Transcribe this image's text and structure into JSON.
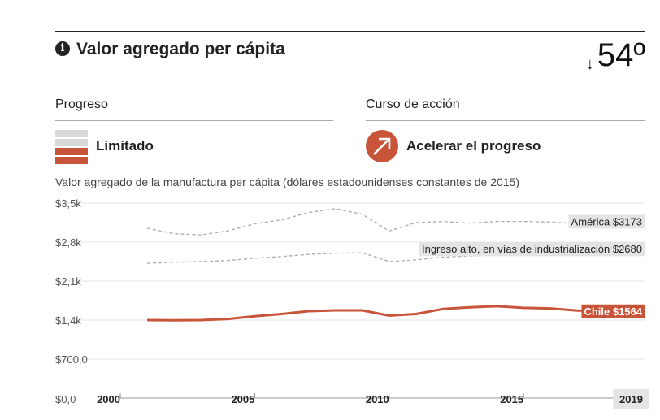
{
  "header": {
    "title": "Valor agregado per cápita",
    "info_icon": "i",
    "rank_arrow": "↓",
    "rank": "54º"
  },
  "progress": {
    "heading": "Progreso",
    "status": "Limitado",
    "icon": "progress-bars-icon",
    "colors": {
      "inactive": "#d9d9d9",
      "active": "#c8553a"
    }
  },
  "action": {
    "heading": "Curso de acción",
    "label": "Acelerar el progreso",
    "icon": "arrow-up-right-icon",
    "color": "#c8553a"
  },
  "chart_caption": "Valor agregado de la manufactura per cápita (dólares estadounidenses constantes de 2015)",
  "chart_data": {
    "type": "line",
    "x": [
      2001,
      2002,
      2003,
      2004,
      2005,
      2006,
      2007,
      2008,
      2009,
      2010,
      2011,
      2012,
      2013,
      2014,
      2015,
      2016,
      2017,
      2018,
      2019
    ],
    "series": [
      {
        "name": "América",
        "label": "América $3173",
        "style": "dashed",
        "color": "#aaaaaa",
        "values": [
          3050,
          2950,
          2930,
          3000,
          3130,
          3200,
          3330,
          3400,
          3300,
          3000,
          3150,
          3170,
          3140,
          3170,
          3170,
          3160,
          3130,
          3080,
          3173
        ]
      },
      {
        "name": "Ingreso alto, en vías de industrialización",
        "label": "Ingreso alto, en vías de industrialización $2680",
        "style": "dashed",
        "color": "#aaaaaa",
        "values": [
          2420,
          2440,
          2450,
          2470,
          2510,
          2540,
          2580,
          2600,
          2610,
          2450,
          2480,
          2530,
          2550,
          2570,
          2590,
          2620,
          2640,
          2660,
          2680
        ]
      },
      {
        "name": "Chile",
        "label": "Chile $1564",
        "style": "solid",
        "color": "#c8553a",
        "values": [
          1400,
          1395,
          1400,
          1420,
          1470,
          1510,
          1560,
          1575,
          1575,
          1480,
          1510,
          1600,
          1630,
          1650,
          1620,
          1610,
          1570,
          1560,
          1564
        ]
      }
    ],
    "y_ticks": [
      {
        "value": 0,
        "label": "$0,0"
      },
      {
        "value": 700,
        "label": "$700,0"
      },
      {
        "value": 1400,
        "label": "$1,4k"
      },
      {
        "value": 2100,
        "label": "$2,1k"
      },
      {
        "value": 2800,
        "label": "$2,8k"
      },
      {
        "value": 3500,
        "label": "$3,5k"
      }
    ],
    "x_ticks": [
      {
        "value": 2000,
        "label": "2000"
      },
      {
        "value": 2005,
        "label": "2005"
      },
      {
        "value": 2010,
        "label": "2010"
      },
      {
        "value": 2015,
        "label": "2015"
      },
      {
        "value": 2019,
        "label": "2019",
        "highlight": true
      }
    ],
    "xlim": [
      2000,
      2019.5
    ],
    "ylim": [
      0,
      3500
    ],
    "grid": true,
    "xlabel": "",
    "ylabel": ""
  }
}
